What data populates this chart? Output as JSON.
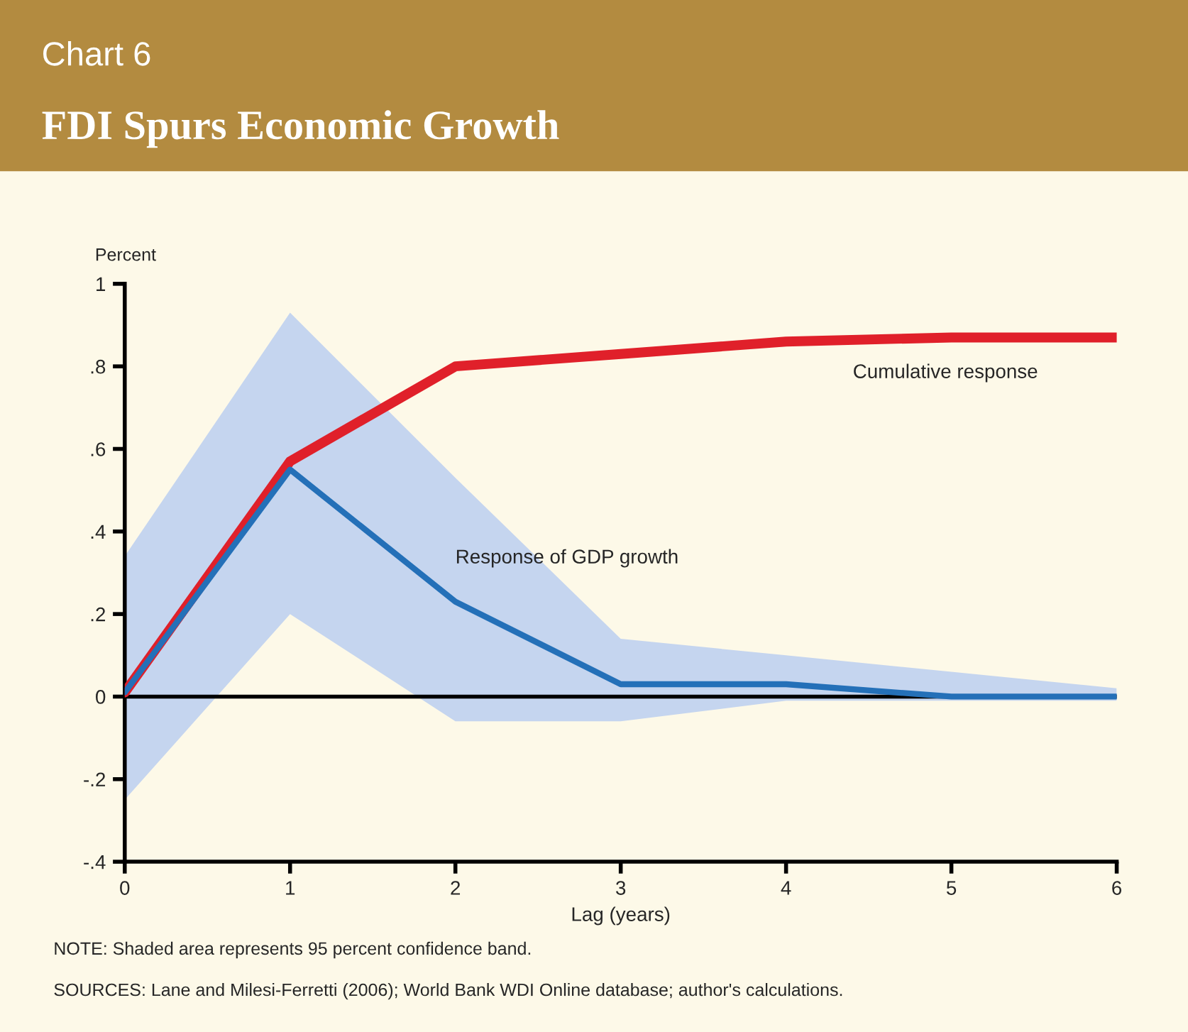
{
  "chart_data": {
    "type": "line",
    "subtitle": "Chart 6",
    "title": "FDI Spurs Economic Growth",
    "ylabel": "Percent",
    "xlabel": "Lag (years)",
    "x": [
      0,
      1,
      2,
      3,
      4,
      5,
      6
    ],
    "series": [
      {
        "name": "Cumulative response",
        "color": "#e0202a",
        "values": [
          0.01,
          0.57,
          0.8,
          0.83,
          0.86,
          0.87,
          0.87
        ]
      },
      {
        "name": "Response of GDP growth",
        "color": "#2470b8",
        "values": [
          0.01,
          0.55,
          0.23,
          0.03,
          0.03,
          0.0,
          0.0
        ],
        "lower": [
          -0.25,
          0.2,
          -0.06,
          -0.06,
          -0.01,
          -0.01,
          -0.01
        ],
        "upper": [
          0.34,
          0.93,
          0.53,
          0.14,
          0.1,
          0.06,
          0.02
        ]
      }
    ],
    "xlim": [
      0,
      6
    ],
    "ylim": [
      -0.4,
      1
    ],
    "xticks": [
      0,
      1,
      2,
      3,
      4,
      5,
      6
    ],
    "yticks": [
      {
        "value": -0.4,
        "label": "-.4"
      },
      {
        "value": -0.2,
        "label": "-.2"
      },
      0,
      {
        "value": 0.2,
        "label": ".2"
      },
      {
        "value": 0.4,
        "label": ".4"
      },
      {
        "value": 0.6,
        "label": ".6"
      },
      {
        "value": 0.8,
        "label": ".8"
      },
      1
    ],
    "ref_lines": [
      {
        "axis": "y",
        "value": 0,
        "color": "#000000"
      }
    ],
    "grid": false,
    "legend": false,
    "annotations": [
      "NOTE: Shaded area represents 95 percent confidence band.",
      "SOURCES: Lane and Milesi-Ferretti (2006); World Bank WDI Online database; author's calculations."
    ]
  }
}
